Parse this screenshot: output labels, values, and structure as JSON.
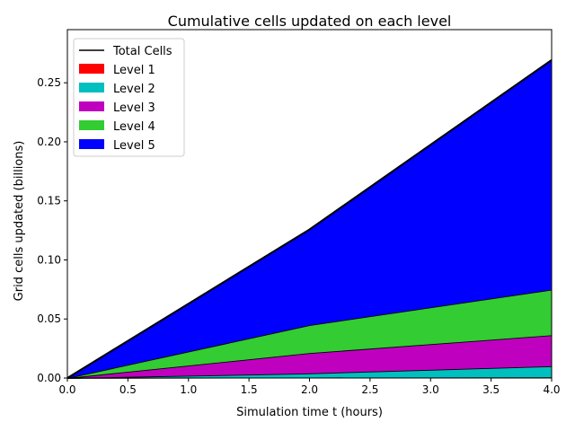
{
  "chart_data": {
    "type": "area",
    "stacked": true,
    "title": "Cumulative cells updated on each level",
    "xlabel": "Simulation time t (hours)",
    "ylabel": "Grid cells updated (billions)",
    "xlim": [
      0,
      4
    ],
    "ylim": [
      0,
      0.295
    ],
    "xticks": [
      0.0,
      0.5,
      1.0,
      1.5,
      2.0,
      2.5,
      3.0,
      3.5,
      4.0
    ],
    "xtick_labels": [
      "0.0",
      "0.5",
      "1.0",
      "1.5",
      "2.0",
      "2.5",
      "3.0",
      "3.5",
      "4.0"
    ],
    "yticks": [
      0,
      0.05,
      0.1,
      0.15,
      0.2,
      0.25
    ],
    "ytick_labels": [
      "0.00",
      "0.05",
      "0.10",
      "0.15",
      "0.20",
      "0.25"
    ],
    "grid": false,
    "legend_position": "top-left",
    "x": [
      0,
      2,
      4
    ],
    "total": {
      "name": "Total Cells",
      "color": "#000000",
      "values": [
        0,
        0.1258,
        0.2693
      ]
    },
    "series": [
      {
        "name": "Level 1",
        "color": "#ff0000",
        "values": [
          0,
          0.0004,
          0.0006
        ]
      },
      {
        "name": "Level 2",
        "color": "#00bfbf",
        "values": [
          0,
          0.0035,
          0.0094
        ]
      },
      {
        "name": "Level 3",
        "color": "#bf00bf",
        "values": [
          0,
          0.0172,
          0.0262
        ]
      },
      {
        "name": "Level 4",
        "color": "#33cc33",
        "values": [
          0,
          0.0237,
          0.0386
        ]
      },
      {
        "name": "Level 5",
        "color": "#0000ff",
        "values": [
          0,
          0.081,
          0.1945
        ]
      }
    ]
  }
}
